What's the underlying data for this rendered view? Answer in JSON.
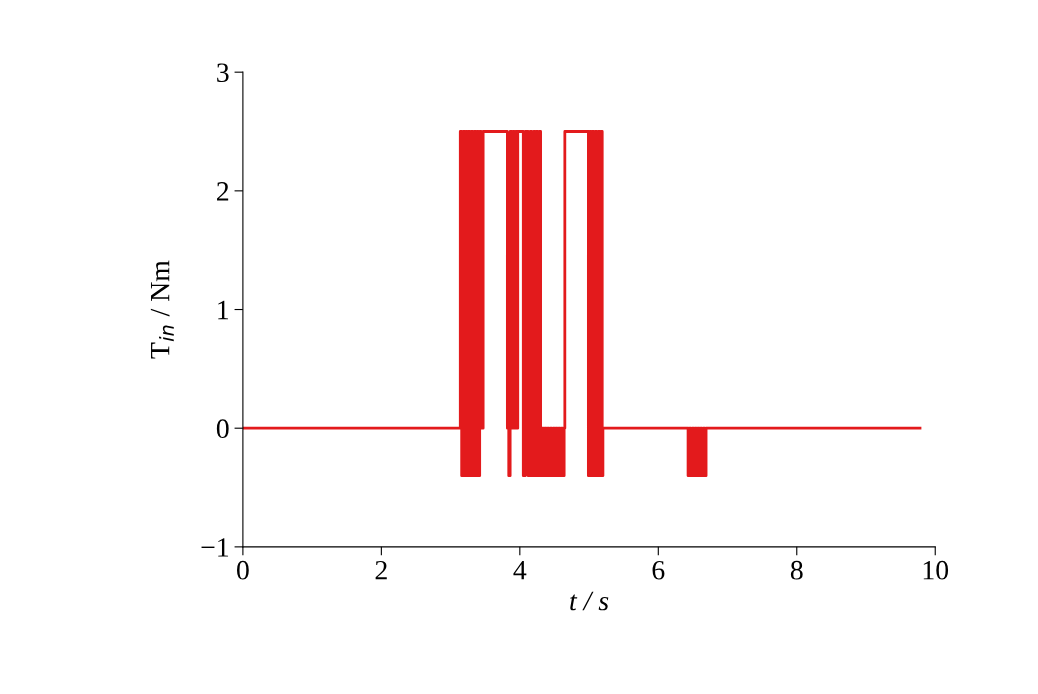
{
  "chart_data": {
    "type": "step",
    "xlabel": "t / s",
    "ylabel": "T$_{in}$ / Nm",
    "xlim": [
      0,
      10
    ],
    "xticks": [
      0,
      2,
      4,
      6,
      8,
      10
    ],
    "ylim": [
      -1,
      3
    ],
    "yticks": [
      {
        "value": -1,
        "label": "−1"
      },
      0,
      1,
      2,
      3
    ],
    "grid": false,
    "legend": false,
    "marker": "none",
    "line_style": "solid",
    "series": [
      {
        "color": "#e31a1c",
        "x": [
          0,
          3.14,
          3.16,
          3.18,
          3.2,
          3.22,
          3.24,
          3.26,
          3.28,
          3.3,
          3.32,
          3.34,
          3.36,
          3.38,
          3.4,
          3.42,
          3.44,
          3.47,
          3.82,
          3.84,
          3.86,
          3.88,
          3.9,
          3.92,
          3.94,
          3.96,
          3.97,
          4.05,
          4.08,
          4.12,
          4.15,
          4.17,
          4.2,
          4.22,
          4.24,
          4.26,
          4.28,
          4.3,
          4.32,
          4.34,
          4.36,
          4.38,
          4.4,
          4.42,
          4.44,
          4.46,
          4.48,
          4.5,
          4.52,
          4.54,
          4.56,
          4.58,
          4.6,
          4.62,
          4.64,
          4.65,
          4.99,
          5.01,
          5.03,
          5.05,
          5.07,
          5.09,
          5.11,
          5.13,
          5.15,
          5.17,
          5.19,
          5.2,
          6.43,
          6.45,
          6.47,
          6.49,
          6.51,
          6.53,
          6.55,
          6.57,
          6.59,
          6.61,
          6.63,
          6.65,
          6.67,
          6.69,
          9.78
        ],
        "values": [
          0,
          2.5,
          -0.4,
          2.5,
          -0.4,
          2.5,
          -0.4,
          2.5,
          -0.4,
          2.5,
          -0.4,
          2.5,
          -0.4,
          2.5,
          -0.4,
          2.5,
          0,
          2.5,
          0,
          -0.4,
          2.5,
          0,
          2.5,
          0,
          2.5,
          0,
          2.5,
          -0.4,
          2.5,
          -0.4,
          2.5,
          -0.4,
          2.5,
          -0.4,
          2.5,
          -0.4,
          2.5,
          -0.4,
          0,
          -0.4,
          0,
          -0.4,
          0,
          -0.4,
          0,
          -0.4,
          0,
          -0.4,
          0,
          -0.4,
          0,
          -0.4,
          0,
          -0.4,
          0,
          2.5,
          -0.4,
          2.5,
          -0.4,
          2.5,
          -0.4,
          2.5,
          -0.4,
          2.5,
          -0.4,
          2.5,
          -0.4,
          0,
          -0.4,
          0,
          -0.4,
          0,
          -0.4,
          0,
          -0.4,
          0,
          -0.4,
          0,
          -0.4,
          0,
          -0.4,
          0,
          0
        ]
      }
    ]
  }
}
